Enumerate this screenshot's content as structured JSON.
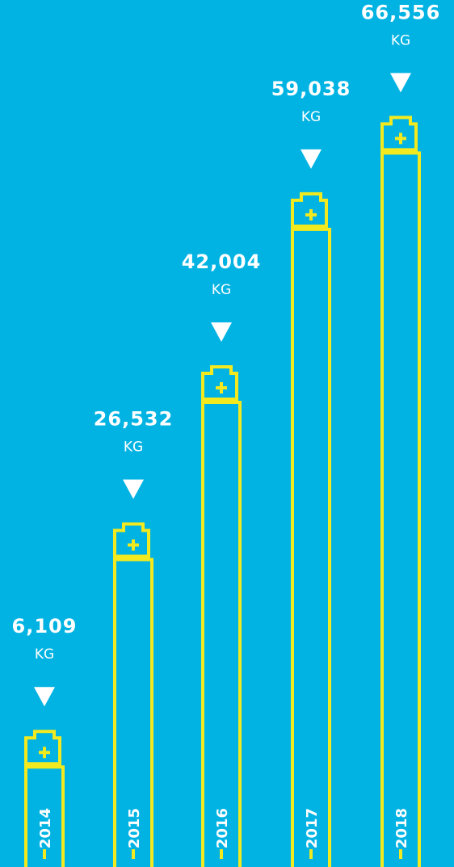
{
  "chart_data": {
    "type": "bar",
    "unit": "KG",
    "categories": [
      "2014",
      "2015",
      "2016",
      "2017",
      "2018"
    ],
    "values": [
      6109,
      26532,
      42004,
      59038,
      66556
    ],
    "value_labels": [
      "6,109",
      "26,532",
      "42,004",
      "59,038",
      "66,556"
    ],
    "color": "#f2ea1e"
  }
}
